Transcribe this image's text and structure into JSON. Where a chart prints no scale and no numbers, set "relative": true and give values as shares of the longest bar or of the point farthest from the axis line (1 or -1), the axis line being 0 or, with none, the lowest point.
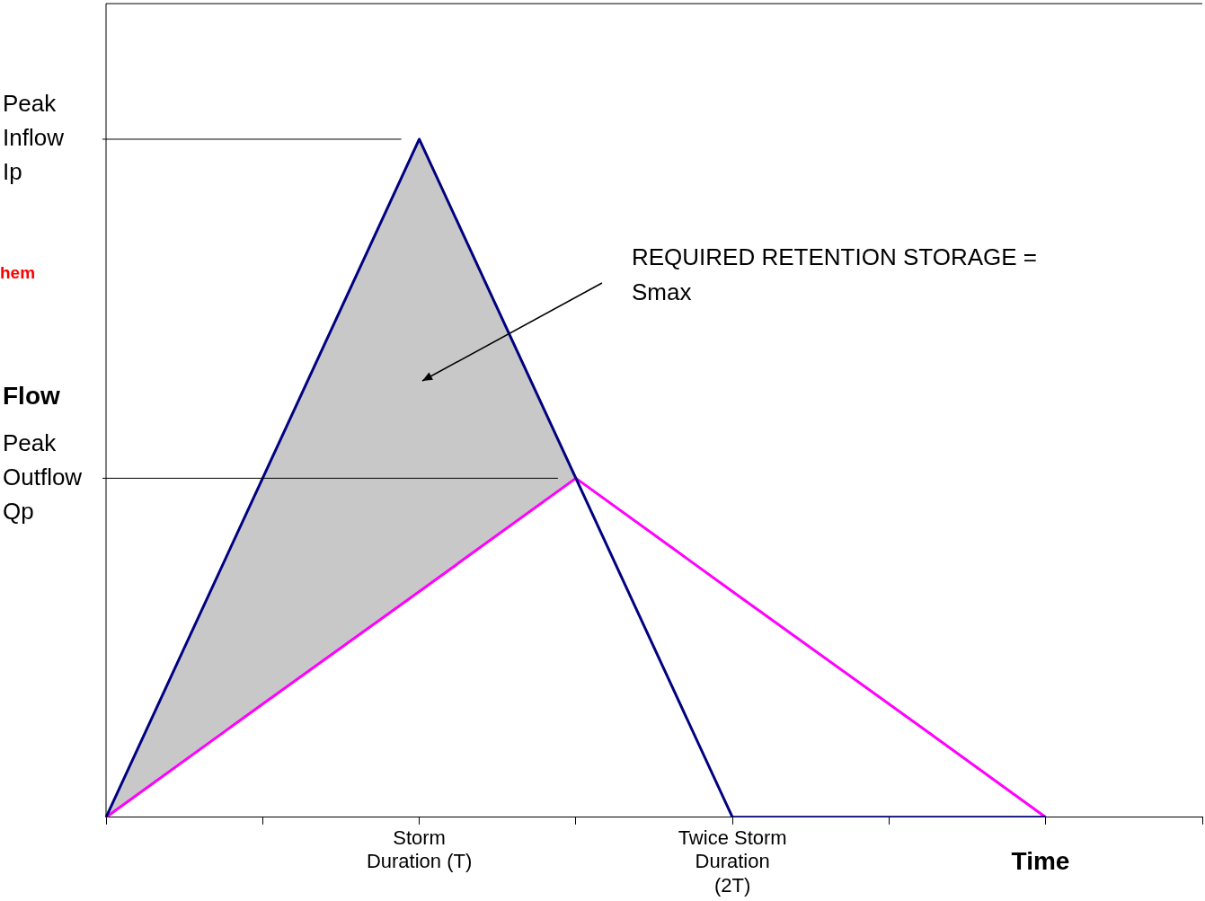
{
  "chart_data": {
    "type": "line",
    "relative": true,
    "xlabel": "Time",
    "ylabel": "Flow",
    "categories": [
      null,
      null,
      "Storm Duration (T)",
      null,
      "Twice Storm Duration (2T)",
      null,
      null,
      null
    ],
    "series": [
      {
        "name": null,
        "color": "#000080",
        "values": [
          0,
          0.5,
          1,
          0.5,
          0,
          0,
          0,
          null
        ],
        "lower": [
          0,
          0.167,
          0.333,
          0.5,
          null,
          null,
          null,
          null
        ],
        "upper": [
          0,
          0.5,
          1,
          0.5,
          null,
          null,
          null,
          null
        ]
      },
      {
        "name": null,
        "color": "#ff00ff",
        "values": [
          0,
          0.167,
          0.333,
          0.5,
          0.333,
          0.167,
          0,
          null
        ]
      }
    ],
    "ref_lines": [
      {
        "axis": "y",
        "value": 1,
        "label": "Peak Inflow Ip",
        "color": "#000000"
      },
      {
        "axis": "y",
        "value": 0.5,
        "label": "Peak Outflow Qp",
        "color": "#000000"
      }
    ],
    "annotations": [
      "REQUIRED RETENTION STORAGE = Smax",
      "hem"
    ],
    "legend": false,
    "grid": false
  }
}
